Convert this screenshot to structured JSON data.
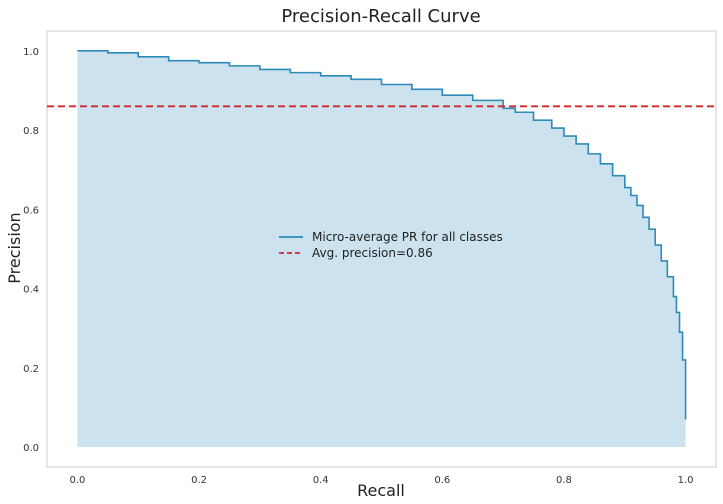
{
  "chart_data": {
    "type": "area",
    "title": "Precision-Recall Curve",
    "xlabel": "Recall",
    "ylabel": "Precision",
    "xlim": [
      -0.05,
      1.05
    ],
    "ylim": [
      -0.05,
      1.05
    ],
    "xticks": [
      "0.0",
      "0.2",
      "0.4",
      "0.6",
      "0.8",
      "1.0"
    ],
    "yticks": [
      "0.0",
      "0.2",
      "0.4",
      "0.6",
      "0.8",
      "1.0"
    ],
    "grid": false,
    "legend_position": "center",
    "series": [
      {
        "name": "Micro-average PR for all classes",
        "style": "step-filled",
        "color": "#2e8ab8",
        "fill_color": "#cce2ee",
        "x": [
          0.0,
          0.05,
          0.1,
          0.15,
          0.2,
          0.25,
          0.3,
          0.35,
          0.4,
          0.45,
          0.5,
          0.55,
          0.6,
          0.65,
          0.7,
          0.72,
          0.75,
          0.78,
          0.8,
          0.82,
          0.84,
          0.86,
          0.88,
          0.9,
          0.91,
          0.92,
          0.93,
          0.94,
          0.95,
          0.96,
          0.97,
          0.98,
          0.985,
          0.99,
          0.995,
          1.0
        ],
        "y": [
          1.0,
          0.995,
          0.985,
          0.975,
          0.97,
          0.962,
          0.953,
          0.945,
          0.937,
          0.928,
          0.915,
          0.903,
          0.888,
          0.875,
          0.855,
          0.845,
          0.825,
          0.805,
          0.785,
          0.765,
          0.74,
          0.715,
          0.685,
          0.655,
          0.635,
          0.61,
          0.58,
          0.55,
          0.51,
          0.47,
          0.43,
          0.38,
          0.34,
          0.29,
          0.22,
          0.07
        ]
      }
    ],
    "reference_lines": [
      {
        "name": "Avg. precision=0.86",
        "orientation": "horizontal",
        "y": 0.86,
        "color": "#d62728",
        "style": "dashed"
      }
    ]
  }
}
